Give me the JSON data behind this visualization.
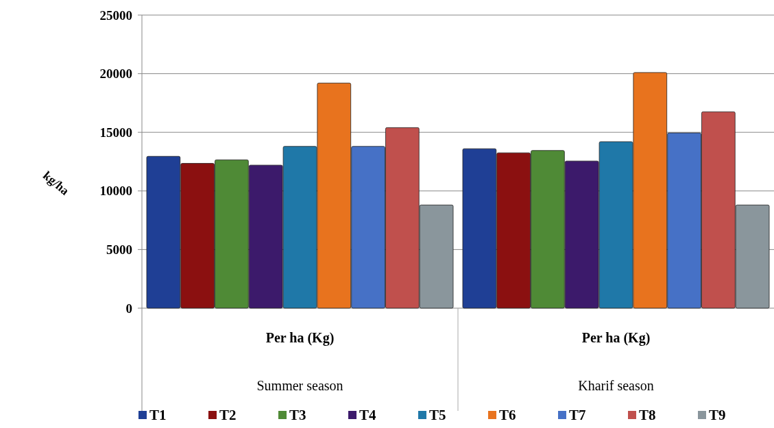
{
  "chart_data": {
    "type": "bar",
    "ylabel": "kg/ha",
    "categories": [
      "Per ha (Kg)",
      "Per ha (Kg)"
    ],
    "annotations": [
      "Summer season",
      "Kharif season"
    ],
    "series": [
      {
        "name": "T1",
        "color": "#1f3f95",
        "values": [
          12950,
          13600
        ]
      },
      {
        "name": "T2",
        "color": "#8b1010",
        "values": [
          12350,
          13250
        ]
      },
      {
        "name": "T3",
        "color": "#4f8a36",
        "values": [
          12650,
          13450
        ]
      },
      {
        "name": "T4",
        "color": "#3c1a6b",
        "values": [
          12200,
          12550
        ]
      },
      {
        "name": "T5",
        "color": "#1f78a8",
        "values": [
          13800,
          14200
        ]
      },
      {
        "name": "T6",
        "color": "#e8731e",
        "values": [
          19200,
          20100
        ]
      },
      {
        "name": "T7",
        "color": "#4671c6",
        "values": [
          13800,
          14950
        ]
      },
      {
        "name": "T8",
        "color": "#c0504d",
        "values": [
          15400,
          16750
        ]
      },
      {
        "name": "T9",
        "color": "#8a969c",
        "values": [
          8800,
          8800
        ]
      }
    ],
    "ylim": [
      0,
      25000
    ],
    "yticks": [
      0,
      5000,
      10000,
      15000,
      20000,
      25000
    ],
    "grid": "y",
    "legend": "bottom"
  }
}
